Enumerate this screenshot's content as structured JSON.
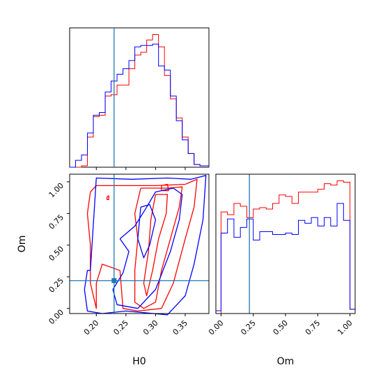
{
  "chart_data": [
    {
      "type": "histogram",
      "panel": "H0 marginal",
      "xlim": [
        0.155,
        0.39
      ],
      "truth": 0.23,
      "truth_color": "#1f77b4",
      "bin_edges": [
        0.155,
        0.165,
        0.175,
        0.185,
        0.195,
        0.205,
        0.215,
        0.225,
        0.235,
        0.245,
        0.255,
        0.265,
        0.275,
        0.285,
        0.295,
        0.305,
        0.315,
        0.325,
        0.335,
        0.345,
        0.355,
        0.365,
        0.375,
        0.39
      ],
      "series": [
        {
          "color": "#ff0000",
          "values": [
            0,
            0,
            0.01,
            0.22,
            0.37,
            0.38,
            0.52,
            0.53,
            0.6,
            0.6,
            0.72,
            0.82,
            0.84,
            0.93,
            0.97,
            0.88,
            0.67,
            0.5,
            0.36,
            0.22,
            0.1,
            0.02,
            0.01
          ]
        },
        {
          "color": "#0000ff",
          "values": [
            0,
            0.05,
            0.09,
            0.25,
            0.38,
            0.4,
            0.55,
            0.63,
            0.68,
            0.72,
            0.78,
            0.88,
            0.89,
            0.89,
            0.9,
            0.74,
            0.71,
            0.52,
            0.34,
            0.2,
            0.1,
            0.02,
            0.01
          ]
        }
      ]
    },
    {
      "type": "contour",
      "panel": "H0 vs Om",
      "xlabel": "H0",
      "ylabel": "Om",
      "xlim": [
        0.155,
        0.39
      ],
      "ylim": [
        -0.04,
        1.06
      ],
      "x_ticks": [
        "0.20",
        "0.25",
        "0.30",
        "0.35"
      ],
      "x_tick_values": [
        0.2,
        0.25,
        0.3,
        0.35
      ],
      "y_ticks": [
        "0.00",
        "0.25",
        "0.50",
        "0.75",
        "1.00"
      ],
      "y_tick_values": [
        0.0,
        0.25,
        0.5,
        0.75,
        1.0
      ],
      "truth": {
        "x": 0.23,
        "y": 0.22,
        "color": "#1f77b4"
      },
      "series": [
        {
          "color": "#ff0000",
          "contours": [
            [
              [
                0.19,
                0.92
              ],
              [
                0.2,
                0.97
              ],
              [
                0.3,
                0.97
              ],
              [
                0.35,
                0.98
              ],
              [
                0.37,
                1.02
              ],
              [
                0.365,
                0.8
              ],
              [
                0.35,
                0.55
              ],
              [
                0.33,
                0.2
              ],
              [
                0.31,
                0.0
              ],
              [
                0.27,
                -0.02
              ],
              [
                0.245,
                0.0
              ],
              [
                0.24,
                0.3
              ],
              [
                0.21,
                0.35
              ],
              [
                0.2,
                0.2
              ],
              [
                0.2,
                0.0
              ],
              [
                0.19,
                0.2
              ],
              [
                0.19,
                0.5
              ],
              [
                0.185,
                0.75
              ],
              [
                0.19,
                0.92
              ]
            ],
            [
              [
                0.275,
                0.95
              ],
              [
                0.32,
                0.95
              ],
              [
                0.345,
                0.96
              ],
              [
                0.34,
                0.8
              ],
              [
                0.325,
                0.55
              ],
              [
                0.31,
                0.3
              ],
              [
                0.3,
                0.05
              ],
              [
                0.28,
                0.0
              ],
              [
                0.265,
                0.05
              ],
              [
                0.265,
                0.3
              ],
              [
                0.27,
                0.55
              ],
              [
                0.265,
                0.75
              ],
              [
                0.275,
                0.95
              ]
            ],
            [
              [
                0.3,
                0.9
              ],
              [
                0.32,
                0.9
              ],
              [
                0.318,
                0.75
              ],
              [
                0.305,
                0.55
              ],
              [
                0.295,
                0.3
              ],
              [
                0.285,
                0.1
              ],
              [
                0.28,
                0.2
              ],
              [
                0.288,
                0.45
              ],
              [
                0.292,
                0.7
              ],
              [
                0.3,
                0.9
              ]
            ],
            [
              [
                0.31,
                0.97
              ],
              [
                0.32,
                0.98
              ],
              [
                0.322,
                0.93
              ],
              [
                0.31,
                0.93
              ],
              [
                0.31,
                0.97
              ]
            ],
            [
              [
                0.218,
                0.88
              ],
              [
                0.221,
                0.89
              ],
              [
                0.221,
                0.86
              ],
              [
                0.218,
                0.86
              ],
              [
                0.218,
                0.88
              ]
            ]
          ]
        },
        {
          "color": "#0000ff",
          "contours": [
            [
              [
                0.19,
                0.3
              ],
              [
                0.2,
                1.03
              ],
              [
                0.26,
                1.02
              ],
              [
                0.32,
                1.03
              ],
              [
                0.36,
                1.02
              ],
              [
                0.385,
                1.05
              ],
              [
                0.38,
                0.7
              ],
              [
                0.365,
                0.35
              ],
              [
                0.35,
                0.1
              ],
              [
                0.32,
                -0.05
              ],
              [
                0.25,
                -0.02
              ],
              [
                0.21,
                -0.04
              ],
              [
                0.185,
                -0.02
              ],
              [
                0.18,
                0.15
              ],
              [
                0.185,
                0.3
              ],
              [
                0.19,
                0.3
              ]
            ],
            [
              [
                0.24,
                0.55
              ],
              [
                0.265,
                0.65
              ],
              [
                0.285,
                0.8
              ],
              [
                0.3,
                0.92
              ],
              [
                0.33,
                0.95
              ],
              [
                0.345,
                0.9
              ],
              [
                0.34,
                0.7
              ],
              [
                0.325,
                0.45
              ],
              [
                0.3,
                0.15
              ],
              [
                0.27,
                0.0
              ],
              [
                0.235,
                0.03
              ],
              [
                0.228,
                0.15
              ],
              [
                0.245,
                0.28
              ],
              [
                0.255,
                0.45
              ],
              [
                0.24,
                0.55
              ]
            ],
            [
              [
                0.275,
                0.8
              ],
              [
                0.29,
                0.82
              ],
              [
                0.3,
                0.7
              ],
              [
                0.29,
                0.5
              ],
              [
                0.28,
                0.4
              ],
              [
                0.27,
                0.55
              ],
              [
                0.275,
                0.8
              ]
            ]
          ]
        }
      ]
    },
    {
      "type": "histogram",
      "panel": "Om marginal",
      "xlabel": "Om",
      "xlim": [
        -0.04,
        1.04
      ],
      "x_ticks": [
        "0.00",
        "0.25",
        "0.50",
        "0.75",
        "1.00"
      ],
      "x_tick_values": [
        0.0,
        0.25,
        0.5,
        0.75,
        1.0
      ],
      "truth": 0.22,
      "truth_color": "#1f77b4",
      "bin_edges": [
        -0.04,
        0.0,
        0.05,
        0.1,
        0.15,
        0.2,
        0.25,
        0.3,
        0.35,
        0.4,
        0.45,
        0.5,
        0.55,
        0.6,
        0.65,
        0.7,
        0.75,
        0.8,
        0.85,
        0.9,
        0.95,
        1.0,
        1.04
      ],
      "series": [
        {
          "color": "#ff0000",
          "values": [
            0,
            0.72,
            0.7,
            0.78,
            0.76,
            0.68,
            0.74,
            0.75,
            0.74,
            0.78,
            0.84,
            0.83,
            0.78,
            0.86,
            0.86,
            0.86,
            0.88,
            0.92,
            0.91,
            0.94,
            0.93,
            0.03
          ]
        },
        {
          "color": "#0000ff",
          "values": [
            0.02,
            0.57,
            0.67,
            0.54,
            0.61,
            0.67,
            0.52,
            0.58,
            0.58,
            0.56,
            0.56,
            0.57,
            0.56,
            0.66,
            0.64,
            0.68,
            0.62,
            0.68,
            0.62,
            0.78,
            0.66,
            0.03
          ]
        }
      ]
    }
  ]
}
